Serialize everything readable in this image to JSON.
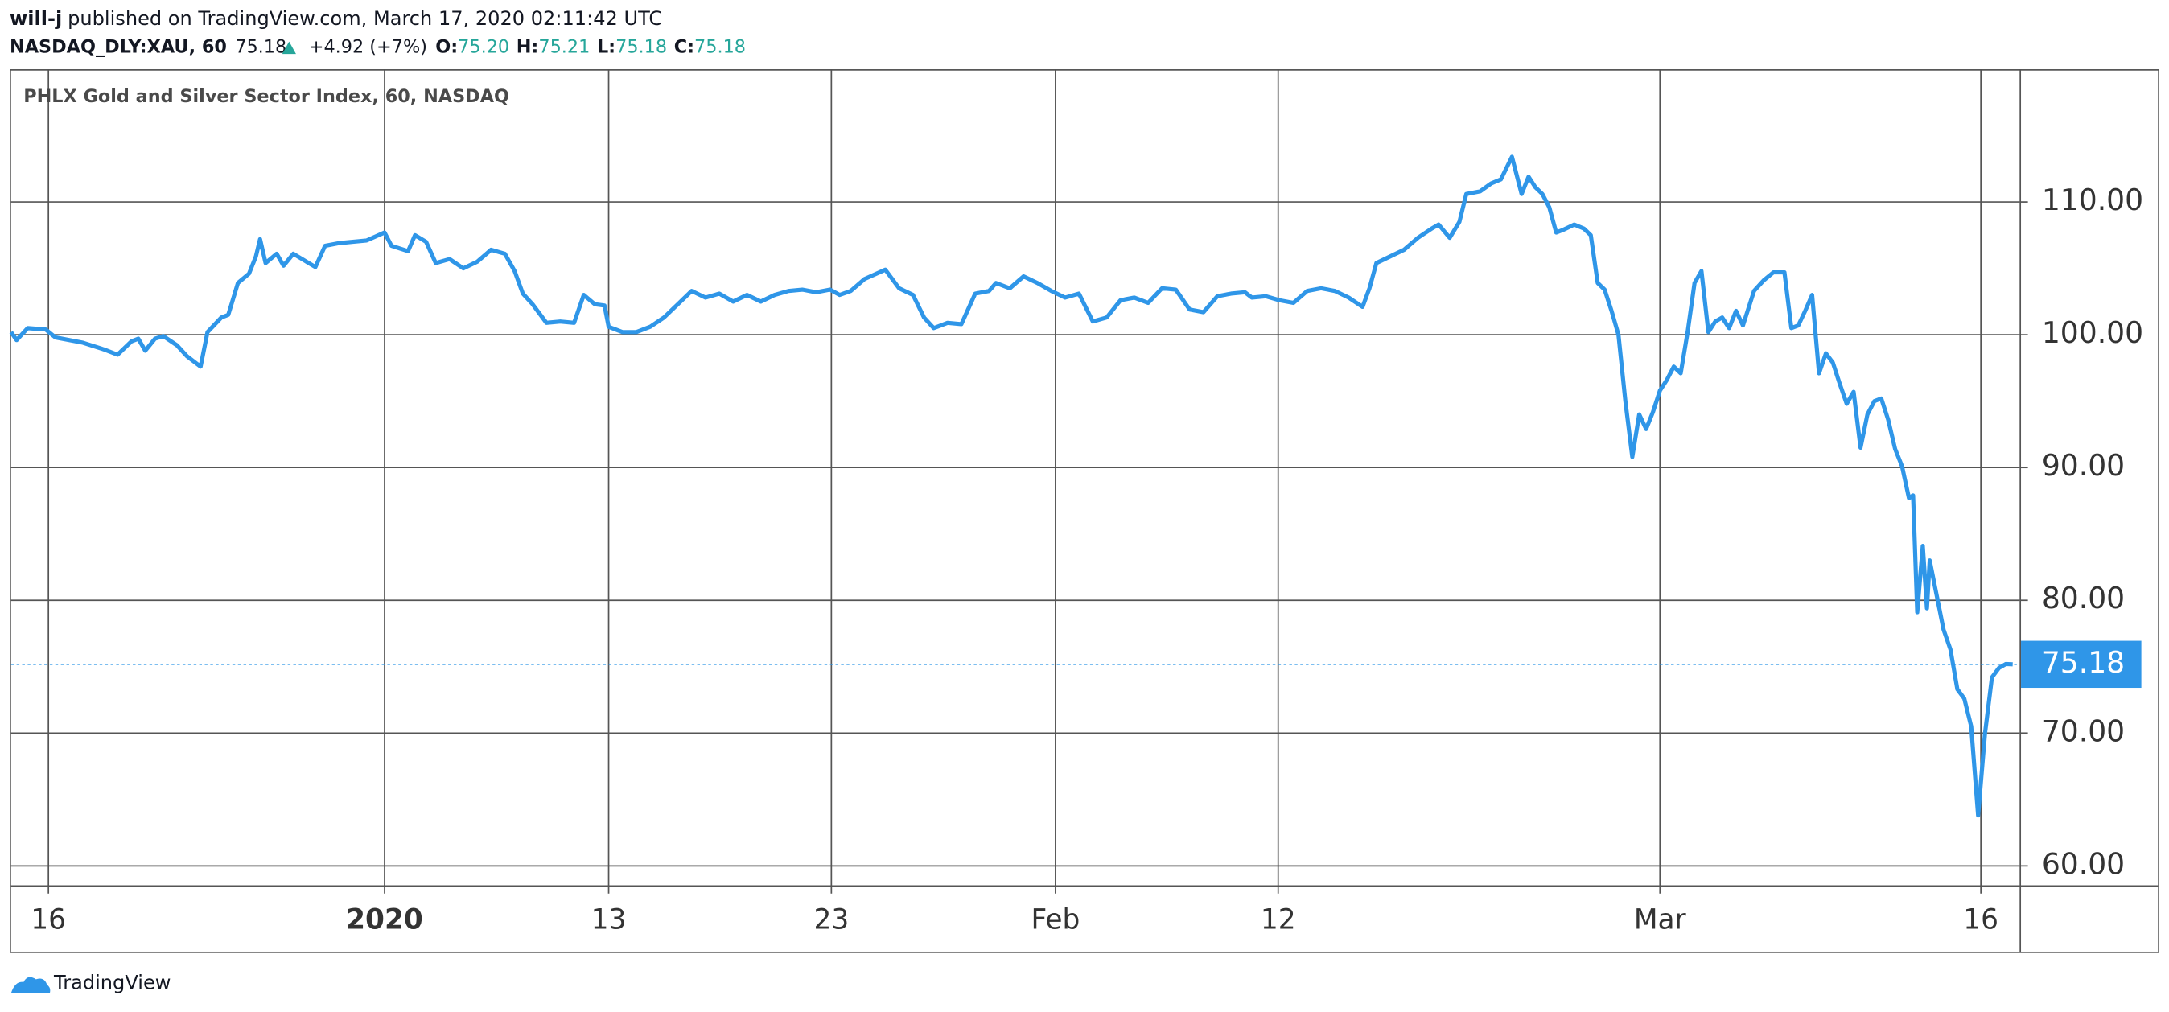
{
  "header": {
    "author": "will-j",
    "published": "published on TradingView.com, March 17, 2020 02:11:42 UTC",
    "symbol": "NASDAQ_DLY:XAU, 60",
    "last": "75.18",
    "change": "+4.92 (+7%)",
    "o_label": "O:",
    "o": "75.20",
    "h_label": "H:",
    "h": "75.21",
    "l_label": "L:",
    "l": "75.18",
    "c_label": "C:",
    "c": "75.18"
  },
  "footer": {
    "brand": "TradingView"
  },
  "chart_data": {
    "type": "line",
    "title": "PHLX Gold and Silver Sector Index, 60, NASDAQ",
    "x": [
      0,
      4,
      12,
      25,
      32,
      52,
      67,
      77,
      87,
      92,
      97,
      104,
      110,
      120,
      127,
      137,
      142,
      152,
      157,
      164,
      172,
      177,
      180,
      184,
      192,
      197,
      204,
      212,
      220,
      227,
      237,
      247,
      257,
      270,
      275,
      287,
      292,
      300,
      307,
      317,
      327,
      337,
      347,
      357,
      364,
      370,
      377,
      387,
      397,
      407,
      414,
      422,
      429,
      432,
      442,
      452,
      462,
      472,
      482,
      492,
      502,
      512,
      522,
      532,
      542,
      552,
      562,
      572,
      582,
      592,
      599,
      607,
      617,
      632,
      642,
      652,
      660,
      667,
      677,
      687,
      697,
      707,
      712,
      722,
      732,
      742,
      752,
      762,
      772,
      782,
      792,
      802,
      812,
      822,
      832,
      842,
      852,
      862,
      872,
      882,
      892,
      897,
      907,
      917,
      927,
      937,
      947,
      957,
      967,
      977,
      982,
      987,
      997,
      1007,
      1017,
      1027,
      1032,
      1040,
      1047,
      1052,
      1062,
      1070,
      1077,
      1085,
      1092,
      1097,
      1102,
      1107,
      1112,
      1117,
      1122,
      1130,
      1137,
      1142,
      1147,
      1152,
      1157,
      1162,
      1167,
      1172,
      1177,
      1182,
      1187,
      1192,
      1197,
      1202,
      1207,
      1212,
      1217,
      1222,
      1227,
      1232,
      1237,
      1242,
      1247,
      1252,
      1260,
      1267,
      1274,
      1282,
      1287,
      1292,
      1297,
      1302,
      1307,
      1312,
      1317,
      1322,
      1327,
      1332,
      1337,
      1342,
      1347,
      1352,
      1357,
      1362,
      1367,
      1372,
      1375,
      1378,
      1382,
      1385,
      1387,
      1392,
      1397,
      1402,
      1407,
      1412,
      1417,
      1422,
      1427,
      1432,
      1437,
      1442,
      1447
    ],
    "series": [
      {
        "color": "#2f96e8",
        "values": [
          100.2,
          99.6,
          100.5,
          100.4,
          99.8,
          99.4,
          98.9,
          98.5,
          99.5,
          99.7,
          98.8,
          99.7,
          99.9,
          99.2,
          98.4,
          97.6,
          100.2,
          101.3,
          101.5,
          103.9,
          104.6,
          105.9,
          107.2,
          105.4,
          106.1,
          105.2,
          106.1,
          105.6,
          105.1,
          106.7,
          106.9,
          107.0,
          107.1,
          107.7,
          106.7,
          106.3,
          107.5,
          107.0,
          105.4,
          105.7,
          105.0,
          105.5,
          106.4,
          106.1,
          104.8,
          103.1,
          102.3,
          100.9,
          101.0,
          100.9,
          103.0,
          102.3,
          102.2,
          100.6,
          100.2,
          100.2,
          100.6,
          101.3,
          102.3,
          103.3,
          102.8,
          103.1,
          102.5,
          103.0,
          102.5,
          103.0,
          103.3,
          103.4,
          103.2,
          103.4,
          103.0,
          103.3,
          104.2,
          104.9,
          103.5,
          103.0,
          101.3,
          100.5,
          100.9,
          100.8,
          103.1,
          103.3,
          103.9,
          103.5,
          104.4,
          103.9,
          103.3,
          102.8,
          103.1,
          101.0,
          101.3,
          102.6,
          102.8,
          102.4,
          103.5,
          103.4,
          101.9,
          101.7,
          102.9,
          103.1,
          103.2,
          102.8,
          102.9,
          102.6,
          102.4,
          103.3,
          103.5,
          103.3,
          102.8,
          102.1,
          103.5,
          105.4,
          105.9,
          106.4,
          107.3,
          108.0,
          108.3,
          107.3,
          108.5,
          110.6,
          110.8,
          111.4,
          111.7,
          113.4,
          110.6,
          111.9,
          111.1,
          110.6,
          109.6,
          107.7,
          107.9,
          108.3,
          108.0,
          107.5,
          103.9,
          103.4,
          101.8,
          100.0,
          95.0,
          90.8,
          94.0,
          92.9,
          94.2,
          95.8,
          96.6,
          97.6,
          97.1,
          100.2,
          103.9,
          104.8,
          100.2,
          101.0,
          101.3,
          100.5,
          101.8,
          100.7,
          103.3,
          104.1,
          104.7,
          104.7,
          100.5,
          100.7,
          101.8,
          103.0,
          97.1,
          98.6,
          97.9,
          96.3,
          94.8,
          95.7,
          91.5,
          94.0,
          95.0,
          95.2,
          93.6,
          91.4,
          90.1,
          87.7,
          87.9,
          79.1,
          84.1,
          79.4,
          83.0,
          80.4,
          77.8,
          76.3,
          73.3,
          72.6,
          70.5,
          63.8,
          70.0,
          74.2,
          74.9,
          75.2,
          75.18
        ]
      }
    ],
    "xlim": [
      0,
      1452
    ],
    "xticks": [
      {
        "value": 27,
        "label": "16"
      },
      {
        "value": 270,
        "label": "2020"
      },
      {
        "value": 432,
        "label": "13"
      },
      {
        "value": 593,
        "label": "23"
      },
      {
        "value": 755,
        "label": "Feb"
      },
      {
        "value": 916,
        "label": "12"
      },
      {
        "value": 1192,
        "label": "Mar"
      },
      {
        "value": 1424,
        "label": "16"
      }
    ],
    "ylim": [
      58.54,
      120
    ],
    "yticks": [
      {
        "value": 60,
        "label": "60.00"
      },
      {
        "value": 70,
        "label": "70.00"
      },
      {
        "value": 80,
        "label": "80.00"
      },
      {
        "value": 90,
        "label": "90.00"
      },
      {
        "value": 100,
        "label": "100.00"
      },
      {
        "value": 110,
        "label": "110.00"
      }
    ],
    "grid": true
  }
}
